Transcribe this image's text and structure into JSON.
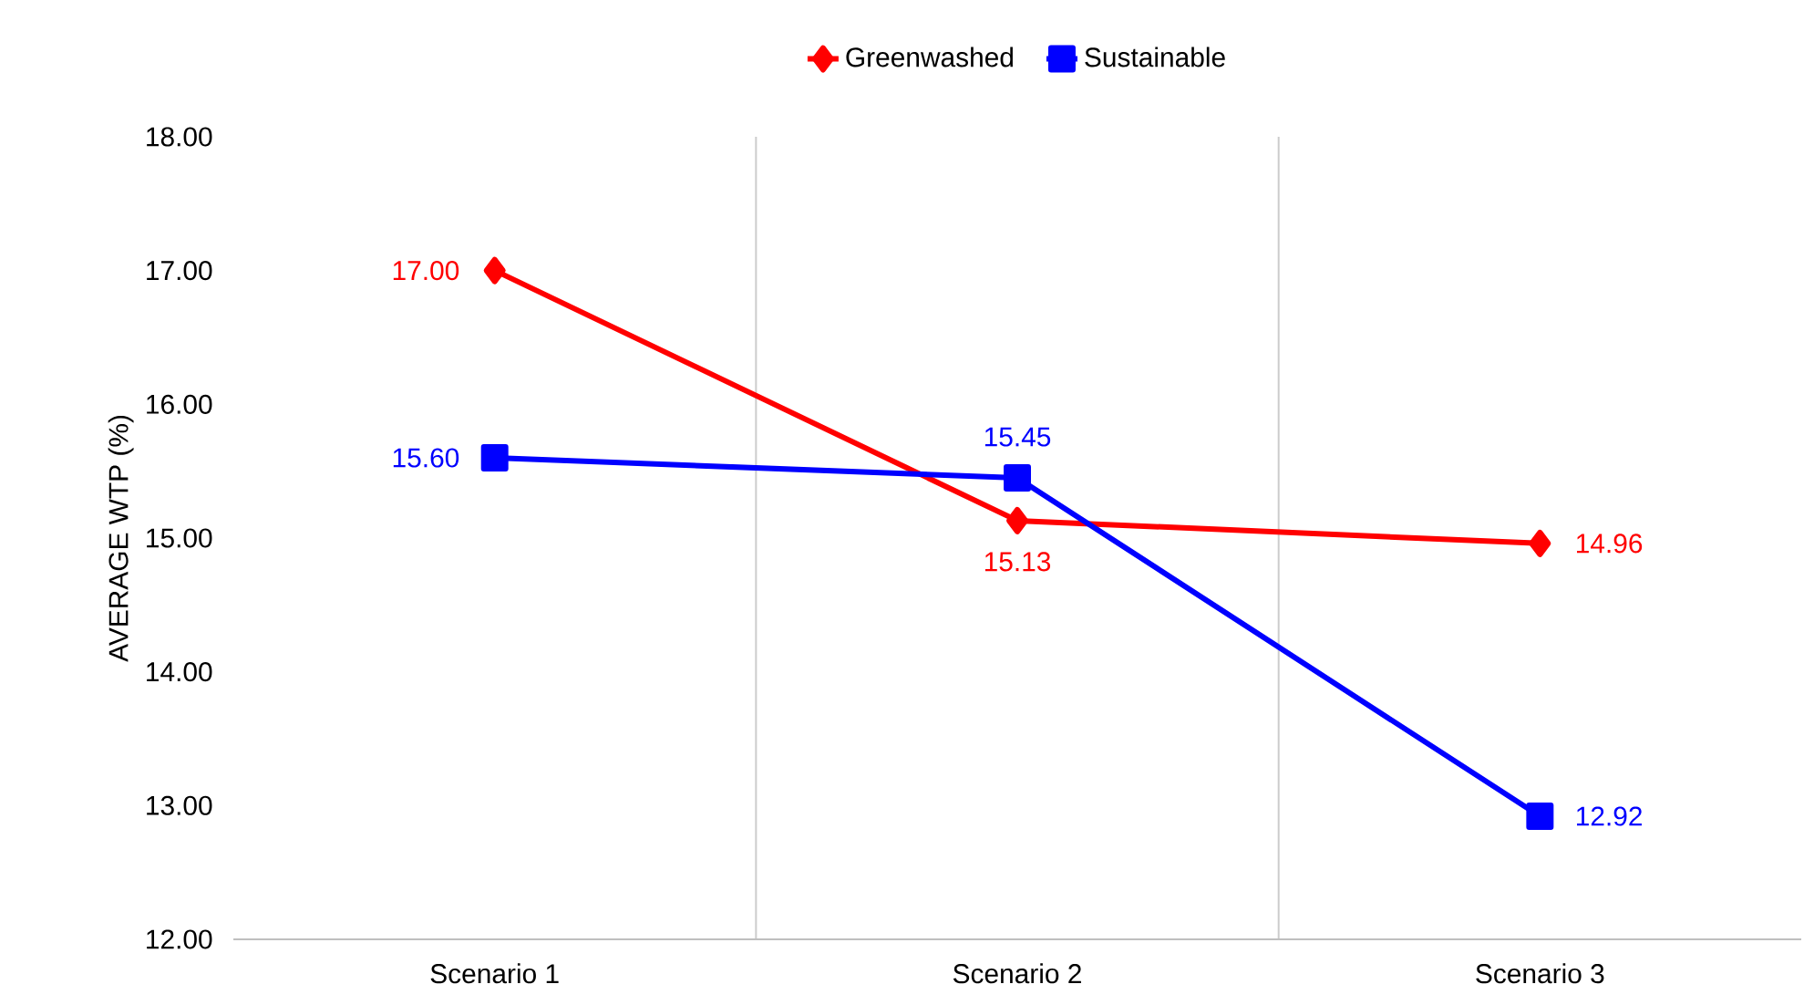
{
  "chart_data": {
    "type": "line",
    "ylabel": "AVERAGE WTP (%)",
    "categories": [
      "Scenario 1",
      "Scenario 2",
      "Scenario 3"
    ],
    "series": [
      {
        "name": "Greenwashed",
        "color": "#ff0000",
        "marker": "diamond",
        "values": [
          17.0,
          15.13,
          14.96
        ],
        "value_labels": [
          "17.00",
          "15.13",
          "14.96"
        ]
      },
      {
        "name": "Sustainable",
        "color": "#0000ff",
        "marker": "square",
        "values": [
          15.6,
          15.45,
          12.92
        ],
        "value_labels": [
          "15.60",
          "15.45",
          "12.92"
        ]
      }
    ],
    "ylim": [
      12,
      18
    ],
    "yticks": [
      {
        "value": 12,
        "label": "12.00"
      },
      {
        "value": 13,
        "label": "13.00"
      },
      {
        "value": 14,
        "label": "14.00"
      },
      {
        "value": 15,
        "label": "15.00"
      },
      {
        "value": 16,
        "label": "16.00"
      },
      {
        "value": 17,
        "label": "17.00"
      },
      {
        "value": 18,
        "label": "18.00"
      }
    ],
    "grid": "x",
    "legend": "top",
    "line_style": "solid"
  }
}
